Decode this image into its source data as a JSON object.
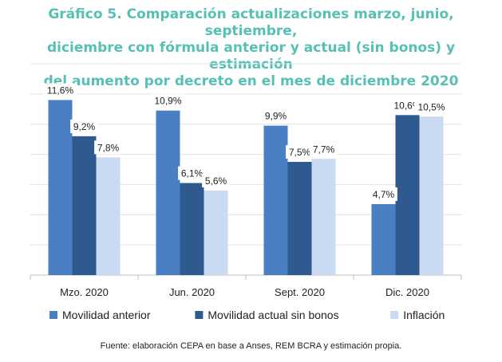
{
  "header": {
    "title_lines": [
      "Gráfico 5. Comparación actualizaciones marzo, junio, septiembre,",
      "diciembre con fórmula anterior y actual (sin bonos) y estimación",
      "del aumento por decreto en el mes de diciembre 2020"
    ]
  },
  "source": "Fuente: elaboración CEPA en base a Anses, REM BCRA y estimación propia.",
  "colors": {
    "title": "#57c0b4",
    "movilidad_anterior": "#4a7fc4",
    "movilidad_actual": "#2e5a8f",
    "inflacion": "#c9daf2"
  },
  "chart_data": {
    "type": "bar",
    "categories": [
      "Mzo. 2020",
      "Jun. 2020",
      "Sept. 2020",
      "Dic. 2020"
    ],
    "series": [
      {
        "name": "Movilidad anterior",
        "values": [
          11.6,
          10.9,
          9.9,
          4.7
        ],
        "labels": [
          "11,6%",
          "10,9%",
          "9,9%",
          "4,7%"
        ],
        "color": "#4a7fc4"
      },
      {
        "name": "Movilidad actual sin bonos",
        "values": [
          9.2,
          6.1,
          7.5,
          10.6
        ],
        "labels": [
          "9,2%",
          "6,1%",
          "7,5%",
          "10,6%"
        ],
        "color": "#2e5a8f"
      },
      {
        "name": "Inflación",
        "values": [
          7.8,
          5.6,
          7.7,
          10.5
        ],
        "labels": [
          "7,8%",
          "5,6%",
          "7,7%",
          "10,5%"
        ],
        "color": "#c9daf2"
      }
    ],
    "ylim": [
      0,
      14
    ],
    "grid": true,
    "legend": "bottom"
  }
}
